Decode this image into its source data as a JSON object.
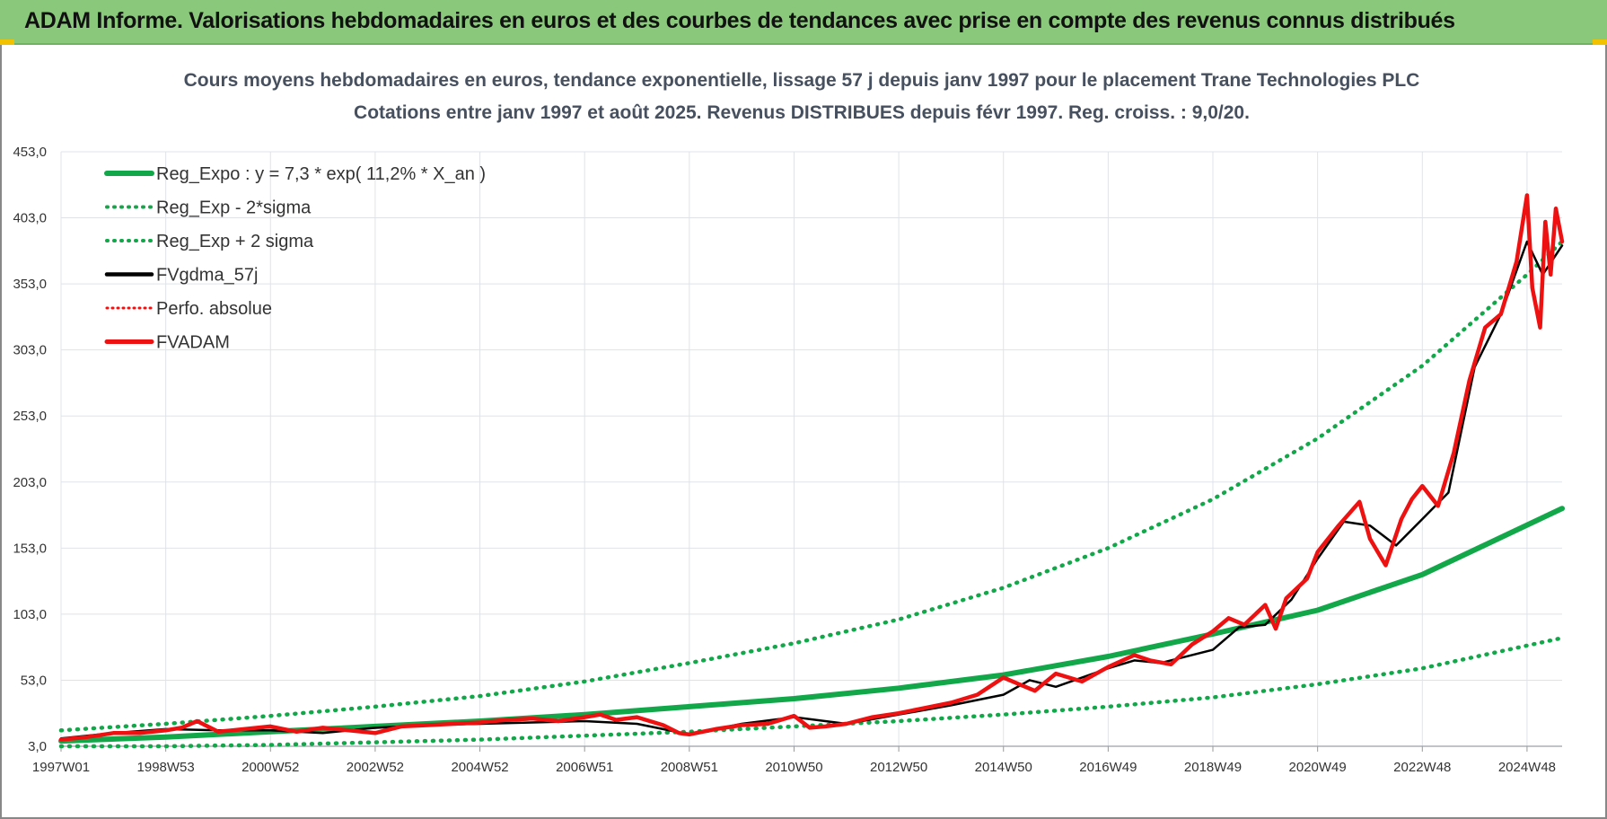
{
  "header": {
    "title": "ADAM Informe. Valorisations hebdomadaires en euros et des courbes de tendances avec prise en compte des revenus connus distribués"
  },
  "colors": {
    "banner": "#8ac97b",
    "trend": "#12a84a",
    "smooth": "#000000",
    "price": "#ee1111",
    "grid": "#dfe3e8"
  },
  "chart_data": {
    "type": "line",
    "title_lines": [
      "Cours moyens hebdomadaires en euros, tendance exponentielle, lissage 57 j depuis janv 1997  pour le  placement Trane Technologies PLC",
      "Cotations entre janv 1997 et août 2025.  Revenus DISTRIBUES depuis févr 1997.  Reg. croiss. : 9,0/20."
    ],
    "xlabel": "",
    "ylabel": "",
    "y_ticks": [
      "3,0",
      "53,0",
      "103,0",
      "153,0",
      "203,0",
      "253,0",
      "303,0",
      "353,0",
      "403,0",
      "453,0"
    ],
    "ylim": [
      3,
      453
    ],
    "x_ticks": [
      "1997W01",
      "1998W53",
      "2000W52",
      "2002W52",
      "2004W52",
      "2006W51",
      "2008W51",
      "2010W50",
      "2012W50",
      "2014W50",
      "2016W49",
      "2018W49",
      "2020W49",
      "2022W48",
      "2024W48"
    ],
    "x_tick_years": [
      1997.0,
      1999.0,
      2001.0,
      2003.0,
      2005.0,
      2007.0,
      2009.0,
      2011.0,
      2013.0,
      2015.0,
      2017.0,
      2019.0,
      2021.0,
      2023.0,
      2025.0
    ],
    "xlim": [
      1997.0,
      2025.67
    ],
    "grid": true,
    "legend_position": "top-left",
    "legend": [
      {
        "label": "Reg_Expo : y = 7,3 * exp( 11,2% *  X_an )",
        "style": "solid-green"
      },
      {
        "label": "Reg_Exp - 2*sigma",
        "style": "dotted-green"
      },
      {
        "label": "Reg_Exp + 2 sigma",
        "style": "dotted-green"
      },
      {
        "label": "FVgdma_57j",
        "style": "solid-black"
      },
      {
        "label": "Perfo. absolue",
        "style": "dotted-red"
      },
      {
        "label": "FVADAM",
        "style": "solid-red"
      }
    ],
    "series": [
      {
        "name": "Reg_Expo : y = 7,3 * exp( 11,2% *  X_an )",
        "x": [
          1997.0,
          1999.0,
          2001.0,
          2003.0,
          2005.0,
          2007.0,
          2009.0,
          2011.0,
          2013.0,
          2015.0,
          2017.0,
          2019.0,
          2021.0,
          2023.0,
          2025.67
        ],
        "y": [
          7,
          10,
          14,
          18,
          22,
          27,
          33,
          39,
          47,
          57,
          71,
          88,
          106,
          133,
          183
        ]
      },
      {
        "name": "Reg_Exp - 2*sigma",
        "x": [
          1997.0,
          1999.0,
          2001.0,
          2003.0,
          2005.0,
          2007.0,
          2009.0,
          2011.0,
          2013.0,
          2015.0,
          2017.0,
          2019.0,
          2021.0,
          2023.0,
          2025.67
        ],
        "y": [
          3,
          3,
          4,
          6,
          8,
          11,
          14,
          18,
          22,
          27,
          33,
          40,
          50,
          62,
          85
        ]
      },
      {
        "name": "Reg_Exp + 2 sigma",
        "x": [
          1997.0,
          1999.0,
          2001.0,
          2003.0,
          2005.0,
          2007.0,
          2009.0,
          2011.0,
          2013.0,
          2015.0,
          2017.0,
          2019.0,
          2021.0,
          2023.0,
          2025.0,
          2025.67
        ],
        "y": [
          15,
          20,
          26,
          33,
          41,
          52,
          66,
          81,
          99,
          123,
          153,
          190,
          236,
          291,
          360,
          385
        ]
      },
      {
        "name": "FVgdma_57j",
        "x": [
          1997.0,
          1998.0,
          1999.0,
          2000.0,
          2001.0,
          2002.0,
          2003.0,
          2004.0,
          2005.0,
          2006.0,
          2007.0,
          2008.0,
          2009.0,
          2010.0,
          2011.0,
          2012.0,
          2013.0,
          2014.0,
          2015.0,
          2015.5,
          2016.0,
          2017.0,
          2017.5,
          2018.0,
          2019.0,
          2019.5,
          2020.0,
          2020.5,
          2021.0,
          2021.5,
          2022.0,
          2022.5,
          2023.0,
          2023.5,
          2024.0,
          2024.5,
          2025.0,
          2025.3,
          2025.67
        ],
        "y": [
          9,
          13,
          16,
          15,
          15,
          13,
          17,
          19,
          20,
          21,
          22,
          20,
          12,
          20,
          25,
          20,
          27,
          34,
          42,
          53,
          48,
          62,
          68,
          66,
          76,
          93,
          95,
          114,
          145,
          173,
          170,
          155,
          175,
          195,
          290,
          330,
          385,
          360,
          382
        ]
      },
      {
        "name": "FVADAM",
        "x": [
          1997.0,
          1997.5,
          1998.0,
          1998.5,
          1999.0,
          1999.3,
          1999.6,
          2000.0,
          2000.5,
          2001.0,
          2001.5,
          2002.0,
          2002.5,
          2003.0,
          2003.5,
          2004.0,
          2004.5,
          2005.0,
          2005.5,
          2006.0,
          2006.5,
          2007.0,
          2007.3,
          2007.6,
          2008.0,
          2008.5,
          2008.8,
          2009.0,
          2009.5,
          2010.0,
          2010.5,
          2011.0,
          2011.3,
          2011.6,
          2012.0,
          2012.5,
          2013.0,
          2013.5,
          2014.0,
          2014.5,
          2015.0,
          2015.3,
          2015.6,
          2016.0,
          2016.5,
          2017.0,
          2017.5,
          2017.8,
          2018.2,
          2018.6,
          2019.0,
          2019.3,
          2019.6,
          2020.0,
          2020.2,
          2020.4,
          2020.8,
          2021.0,
          2021.4,
          2021.8,
          2022.0,
          2022.3,
          2022.6,
          2022.8,
          2023.0,
          2023.3,
          2023.6,
          2023.9,
          2024.2,
          2024.5,
          2024.8,
          2025.0,
          2025.1,
          2025.25,
          2025.35,
          2025.45,
          2025.55,
          2025.67
        ],
        "y": [
          8,
          10,
          13,
          13,
          15,
          17,
          22,
          14,
          16,
          18,
          14,
          17,
          15,
          13,
          18,
          19,
          20,
          21,
          23,
          24,
          22,
          25,
          27,
          23,
          25,
          19,
          13,
          12,
          16,
          19,
          20,
          26,
          17,
          18,
          20,
          25,
          28,
          32,
          36,
          42,
          55,
          50,
          45,
          58,
          52,
          63,
          72,
          68,
          65,
          80,
          90,
          100,
          95,
          110,
          92,
          115,
          130,
          150,
          170,
          188,
          160,
          140,
          175,
          190,
          200,
          185,
          225,
          280,
          320,
          330,
          370,
          420,
          350,
          320,
          400,
          360,
          410,
          385
        ]
      }
    ]
  }
}
